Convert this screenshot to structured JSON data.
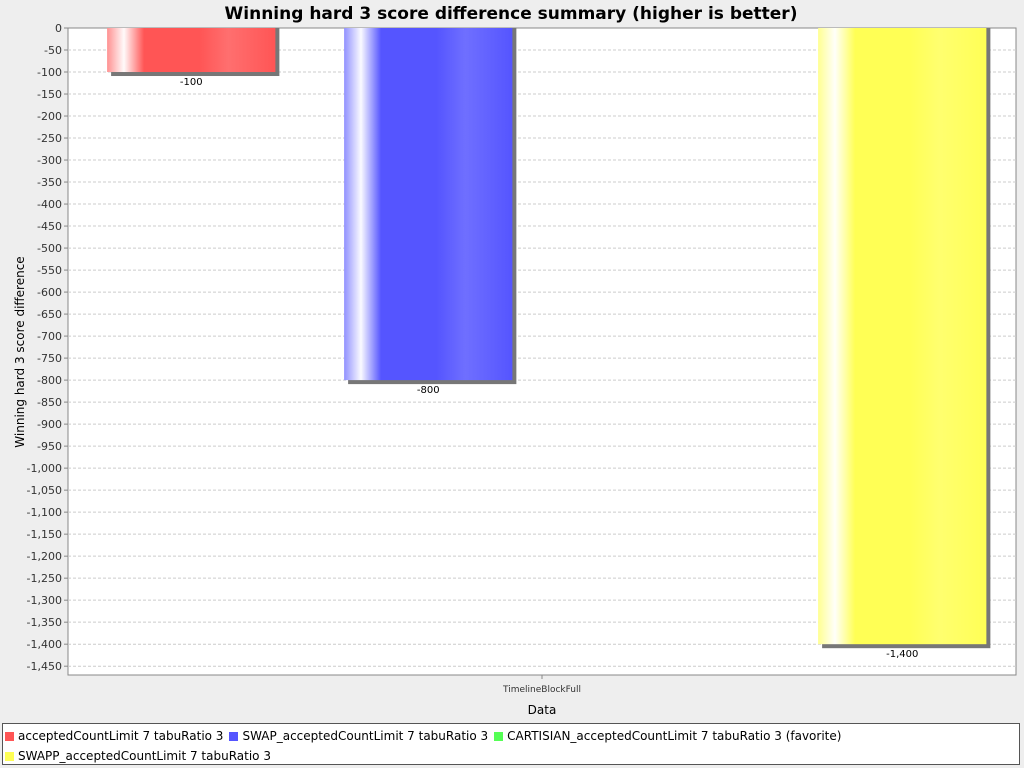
{
  "chart_data": {
    "type": "bar",
    "title": "Winning hard 3 score difference summary (higher is better)",
    "xlabel": "Data",
    "ylabel": "Winning hard 3 score difference",
    "categories": [
      "TimelineBlockFull"
    ],
    "ylim": [
      -1470,
      0
    ],
    "yticks": [
      0,
      -50,
      -100,
      -150,
      -200,
      -250,
      -300,
      -350,
      -400,
      -450,
      -500,
      -550,
      -600,
      -650,
      -700,
      -750,
      -800,
      -850,
      -900,
      -950,
      -1000,
      -1050,
      -1100,
      -1150,
      -1200,
      -1250,
      -1300,
      -1350,
      -1400,
      -1450
    ],
    "ytick_labels": [
      "0",
      "-50",
      "-100",
      "-150",
      "-200",
      "-250",
      "-300",
      "-350",
      "-400",
      "-450",
      "-500",
      "-550",
      "-600",
      "-650",
      "-700",
      "-750",
      "-800",
      "-850",
      "-900",
      "-950",
      "-1,000",
      "-1,050",
      "-1,100",
      "-1,150",
      "-1,200",
      "-1,250",
      "-1,300",
      "-1,350",
      "-1,400",
      "-1,450"
    ],
    "grid": true,
    "legend_position": "bottom",
    "series": [
      {
        "name": "acceptedCountLimit 7 tabuRatio 3",
        "values": [
          -100
        ],
        "value_labels": [
          "-100"
        ],
        "color": "#ff5555"
      },
      {
        "name": "SWAP_acceptedCountLimit 7 tabuRatio 3",
        "values": [
          -800
        ],
        "value_labels": [
          "-800"
        ],
        "color": "#5555ff"
      },
      {
        "name": "CARTISIAN_acceptedCountLimit 7 tabuRatio 3 (favorite)",
        "values": [
          0
        ],
        "value_labels": [
          ""
        ],
        "color": "#55ff55"
      },
      {
        "name": "SWAPP_acceptedCountLimit 7 tabuRatio 3",
        "values": [
          -1400
        ],
        "value_labels": [
          "-1,400"
        ],
        "color": "#ffff55"
      }
    ]
  }
}
